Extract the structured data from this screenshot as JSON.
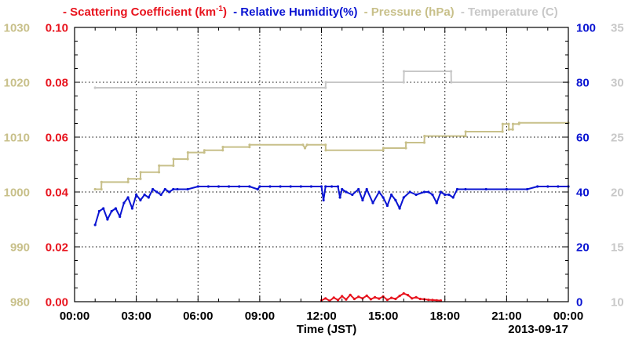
{
  "colors": {
    "scattering": "#e8141e",
    "humidity": "#0a14d2",
    "pressure": "#c8c08a",
    "temperature": "#c8c8c8",
    "axis": "#000000"
  },
  "chart_data": {
    "type": "line",
    "title": "",
    "xlabel": "Time (JST)",
    "date_label": "2013-09-17",
    "x_ticks": [
      "00:00",
      "03:00",
      "06:00",
      "09:00",
      "12:00",
      "15:00",
      "18:00",
      "21:00",
      "00:00"
    ],
    "x_range_hours": [
      0,
      24
    ],
    "grid": true,
    "legend_position": "top",
    "axes": {
      "pressure": {
        "range": [
          980,
          1030
        ],
        "ticks": [
          "980",
          "990",
          "1000",
          "1010",
          "1020",
          "1030"
        ],
        "side": "left-outer"
      },
      "scattering": {
        "range": [
          0.0,
          0.1
        ],
        "ticks": [
          "0.00",
          "0.02",
          "0.04",
          "0.06",
          "0.08",
          "0.10"
        ],
        "side": "left-inner"
      },
      "humidity": {
        "range": [
          0,
          100
        ],
        "ticks": [
          "0",
          "20",
          "40",
          "60",
          "80",
          "100"
        ],
        "side": "right-inner"
      },
      "temperature": {
        "range": [
          10,
          35
        ],
        "ticks": [
          "10",
          "15",
          "20",
          "25",
          "30",
          "35"
        ],
        "side": "right-outer"
      }
    },
    "series": [
      {
        "name": "Scattering Coefficient (km-1)",
        "legend_prefix": "- Scattering Coefficient (km",
        "legend_sup": "-1",
        "legend_suffix": ")",
        "axis": "scattering",
        "color_key": "scattering",
        "x": [
          12.0,
          12.2,
          12.4,
          12.6,
          12.8,
          13.0,
          13.2,
          13.4,
          13.6,
          13.8,
          14.0,
          14.2,
          14.4,
          14.6,
          14.8,
          15.0,
          15.2,
          15.4,
          15.6,
          15.8,
          16.0,
          16.2,
          16.4,
          16.6,
          16.8,
          17.0,
          17.2,
          17.4,
          17.6,
          17.8
        ],
        "y": [
          0.0005,
          0.0012,
          0.0003,
          0.0015,
          0.0006,
          0.002,
          0.0008,
          0.0025,
          0.001,
          0.0018,
          0.0012,
          0.0022,
          0.0009,
          0.0016,
          0.0011,
          0.0019,
          0.0007,
          0.0014,
          0.001,
          0.0021,
          0.003,
          0.0024,
          0.0012,
          0.0016,
          0.001,
          0.0009,
          0.0007,
          0.0006,
          0.0005,
          0.0004
        ]
      },
      {
        "name": "Relative Humidity(%)",
        "legend_label": "- Relative Humidity(%)",
        "axis": "humidity",
        "color_key": "humidity",
        "x": [
          1.0,
          1.2,
          1.4,
          1.6,
          1.8,
          2.0,
          2.2,
          2.4,
          2.6,
          2.8,
          3.0,
          3.2,
          3.4,
          3.6,
          3.8,
          4.0,
          4.2,
          4.4,
          4.6,
          4.8,
          5.0,
          5.5,
          6.0,
          6.5,
          7.0,
          7.5,
          8.0,
          8.5,
          8.9,
          9.0,
          9.5,
          10.0,
          10.5,
          11.0,
          11.5,
          12.0,
          12.1,
          12.2,
          12.5,
          12.8,
          12.9,
          13.0,
          13.2,
          13.5,
          13.8,
          14.0,
          14.2,
          14.5,
          14.8,
          15.0,
          15.2,
          15.4,
          15.6,
          15.8,
          16.0,
          16.3,
          16.6,
          17.0,
          17.2,
          17.4,
          17.6,
          17.8,
          18.0,
          18.2,
          18.4,
          18.6,
          19.0,
          20.0,
          21.0,
          22.0,
          22.5,
          23.0,
          23.5,
          24.0
        ],
        "y": [
          28,
          33,
          34,
          30,
          33,
          34,
          31,
          36,
          38,
          34,
          39,
          37,
          39,
          38,
          41,
          40,
          39,
          41,
          40,
          41,
          41,
          41,
          42,
          42,
          42,
          42,
          42,
          42,
          41,
          42,
          42,
          42,
          42,
          42,
          42,
          42,
          37,
          42,
          42,
          42,
          38,
          41,
          40,
          39,
          41,
          37,
          41,
          36,
          40,
          38,
          35,
          39,
          37,
          34,
          38,
          40,
          39,
          40,
          40,
          39,
          36,
          40,
          39,
          39,
          38,
          41,
          41,
          41,
          41,
          41,
          42,
          42,
          42,
          42
        ]
      },
      {
        "name": "Pressure (hPa)",
        "legend_label": "- Pressure (hPa)",
        "axis": "pressure",
        "color_key": "pressure",
        "x": [
          1.0,
          1.3,
          1.31,
          2.6,
          2.61,
          3.2,
          3.21,
          4.1,
          4.11,
          4.8,
          4.81,
          5.5,
          5.51,
          6.3,
          6.31,
          7.2,
          7.21,
          8.5,
          8.51,
          11.1,
          11.2,
          11.3,
          12.2,
          12.21,
          15.0,
          15.01,
          16.1,
          16.11,
          17.0,
          17.01,
          19.0,
          19.01,
          20.8,
          20.81,
          21.1,
          21.11,
          21.3,
          21.31,
          21.6,
          21.61,
          24.0
        ],
        "y": [
          1000.5,
          1000.5,
          1001.8,
          1001.8,
          1002.4,
          1002.4,
          1003.6,
          1003.6,
          1004.8,
          1004.8,
          1006.0,
          1006.0,
          1007.2,
          1007.2,
          1007.6,
          1007.6,
          1008.2,
          1008.2,
          1008.6,
          1008.6,
          1008.0,
          1008.6,
          1008.6,
          1007.6,
          1007.6,
          1008.0,
          1008.0,
          1009.0,
          1009.0,
          1010.2,
          1010.2,
          1011.0,
          1011.0,
          1012.4,
          1012.4,
          1011.4,
          1011.4,
          1012.4,
          1012.4,
          1012.6,
          1012.6
        ]
      },
      {
        "name": "Temperature (C)",
        "legend_label": "- Temperature (C)",
        "axis": "temperature",
        "color_key": "temperature",
        "x": [
          1.0,
          12.2,
          12.21,
          16.0,
          16.01,
          18.3,
          18.31,
          24.0
        ],
        "y": [
          29.5,
          29.5,
          30.0,
          30.0,
          31.0,
          31.0,
          30.0,
          30.0
        ]
      }
    ]
  }
}
